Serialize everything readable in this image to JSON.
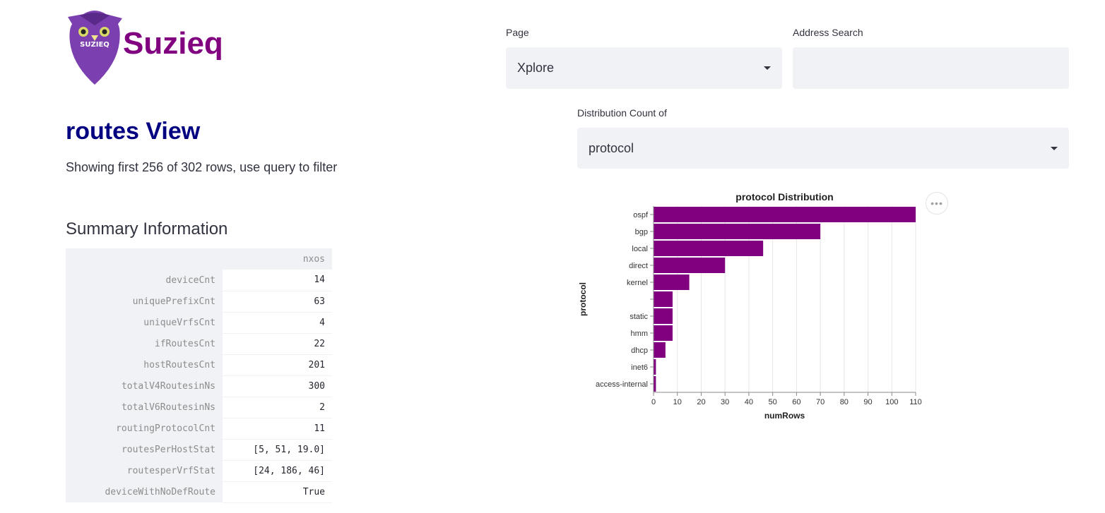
{
  "logo": {
    "text": "Suzieq",
    "badge_text": "SUZIEQ"
  },
  "controls": {
    "page_label": "Page",
    "page_value": "Xplore",
    "address_label": "Address Search",
    "address_value": "",
    "distribution_label": "Distribution Count of",
    "distribution_value": "protocol"
  },
  "main": {
    "title": "routes View",
    "rows_note": "Showing first 256 of 302 rows, use query to filter",
    "summary_title": "Summary Information"
  },
  "summary": {
    "column": "nxos",
    "rows": [
      {
        "key": "deviceCnt",
        "value": "14"
      },
      {
        "key": "uniquePrefixCnt",
        "value": "63"
      },
      {
        "key": "uniqueVrfsCnt",
        "value": "4"
      },
      {
        "key": "ifRoutesCnt",
        "value": "22"
      },
      {
        "key": "hostRoutesCnt",
        "value": "201"
      },
      {
        "key": "totalV4RoutesinNs",
        "value": "300"
      },
      {
        "key": "totalV6RoutesinNs",
        "value": "2"
      },
      {
        "key": "routingProtocolCnt",
        "value": "11"
      },
      {
        "key": "routesPerHostStat",
        "value": "[5, 51, 19.0]"
      },
      {
        "key": "routesperVrfStat",
        "value": "[24, 186, 46]"
      },
      {
        "key": "deviceWithNoDefRoute",
        "value": "True"
      }
    ]
  },
  "chart_menu_icon": "more-horizontal-icon",
  "colors": {
    "brand": "#800080",
    "bar": "#800080",
    "title": "#000080",
    "panel": "#f0f2f6"
  },
  "chart_data": {
    "type": "bar",
    "orientation": "horizontal",
    "title": "protocol Distribution",
    "xlabel": "numRows",
    "ylabel": "protocol",
    "categories": [
      "ospf",
      "bgp",
      "local",
      "direct",
      "kernel",
      "",
      "static",
      "hmm",
      "dhcp",
      "inet6",
      "access-internal"
    ],
    "values": [
      110,
      70,
      46,
      30,
      15,
      8,
      8,
      8,
      5,
      1,
      1
    ],
    "xlim": [
      0,
      110
    ],
    "xticks": [
      0,
      10,
      20,
      30,
      40,
      50,
      60,
      70,
      80,
      90,
      100,
      110
    ],
    "grid": true
  }
}
